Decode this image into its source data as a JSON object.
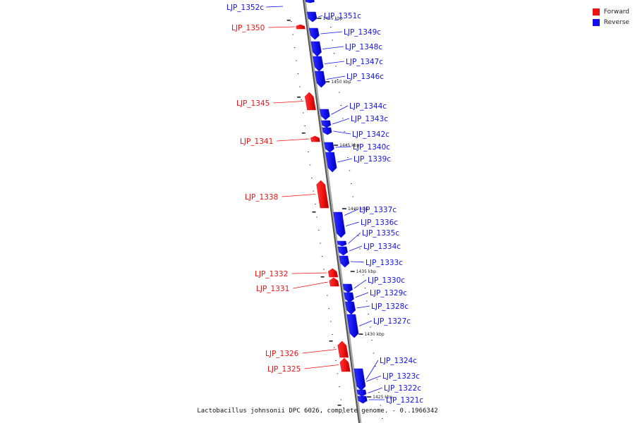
{
  "legend": [
    {
      "label": "Forward",
      "color": "#ee1111"
    },
    {
      "label": "Reverse",
      "color": "#1111ee"
    }
  ],
  "caption": "Lactobacillus johnsonii DPC 6026, complete genome. - 0..1966342",
  "scale_unit": "kbp",
  "ticks": [
    1455,
    1450,
    1445,
    1440,
    1435,
    1430,
    1425
  ],
  "genes": [
    {
      "name": "LJP_1352c",
      "strand": "reverse"
    },
    {
      "name": "LJP_1351c",
      "strand": "reverse"
    },
    {
      "name": "LJP_1350",
      "strand": "forward"
    },
    {
      "name": "LJP_1349c",
      "strand": "reverse"
    },
    {
      "name": "LJP_1348c",
      "strand": "reverse"
    },
    {
      "name": "LJP_1347c",
      "strand": "reverse"
    },
    {
      "name": "LJP_1346c",
      "strand": "reverse"
    },
    {
      "name": "LJP_1345",
      "strand": "forward"
    },
    {
      "name": "LJP_1344c",
      "strand": "reverse"
    },
    {
      "name": "LJP_1343c",
      "strand": "reverse"
    },
    {
      "name": "LJP_1342c",
      "strand": "reverse"
    },
    {
      "name": "LJP_1341",
      "strand": "forward"
    },
    {
      "name": "LJP_1340c",
      "strand": "reverse"
    },
    {
      "name": "LJP_1339c",
      "strand": "reverse"
    },
    {
      "name": "LJP_1338",
      "strand": "forward"
    },
    {
      "name": "LJP_1337c",
      "strand": "reverse"
    },
    {
      "name": "LJP_1336c",
      "strand": "reverse"
    },
    {
      "name": "LJP_1335c",
      "strand": "reverse"
    },
    {
      "name": "LJP_1334c",
      "strand": "reverse"
    },
    {
      "name": "LJP_1333c",
      "strand": "reverse"
    },
    {
      "name": "LJP_1332",
      "strand": "forward"
    },
    {
      "name": "LJP_1331",
      "strand": "forward"
    },
    {
      "name": "LJP_1330c",
      "strand": "reverse"
    },
    {
      "name": "LJP_1329c",
      "strand": "reverse"
    },
    {
      "name": "LJP_1328c",
      "strand": "reverse"
    },
    {
      "name": "LJP_1327c",
      "strand": "reverse"
    },
    {
      "name": "LJP_1326",
      "strand": "forward"
    },
    {
      "name": "LJP_1325",
      "strand": "forward"
    },
    {
      "name": "LJP_1324c",
      "strand": "reverse"
    },
    {
      "name": "LJP_1323c",
      "strand": "reverse"
    },
    {
      "name": "LJP_1322c",
      "strand": "reverse"
    },
    {
      "name": "LJP_1321c",
      "strand": "reverse"
    }
  ]
}
